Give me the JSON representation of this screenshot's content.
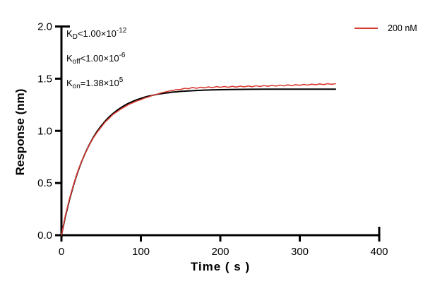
{
  "figure": {
    "background": "#ffffff"
  },
  "colors": {
    "series_red": "#d93b33",
    "fit_black": "#000000",
    "axis": "#000000",
    "text": "#000000"
  },
  "annotation": {
    "lines": [
      {
        "base": "K",
        "sub": "D",
        "mid": "<1.00×10",
        "sup": "-12"
      },
      {
        "base": "K",
        "sub": "off",
        "mid": "<1.00×10",
        "sup": "-6"
      },
      {
        "base": "K",
        "sub": "on",
        "mid": "=1.38×10",
        "sup": "5"
      }
    ]
  },
  "legend": {
    "items": [
      {
        "label": "200 nM",
        "color": "#d93b33"
      }
    ]
  },
  "chart_data": {
    "type": "line",
    "title": "",
    "xlabel": "Time ( s )",
    "ylabel": "Response (nm)",
    "xlim": [
      0,
      400
    ],
    "ylim": [
      0,
      2
    ],
    "x_ticks": [
      0,
      100,
      200,
      300,
      400
    ],
    "y_ticks": [
      "0.0",
      "0.5",
      "1.0",
      "1.5",
      "2.0"
    ],
    "grid": false,
    "legend_position": "top-right",
    "series": [
      {
        "name": "Fit",
        "role": "fit",
        "color": "#000000",
        "width": 2,
        "points": [
          [
            0,
            0.0
          ],
          [
            5,
            0.18
          ],
          [
            10,
            0.338
          ],
          [
            15,
            0.474
          ],
          [
            20,
            0.594
          ],
          [
            25,
            0.698
          ],
          [
            30,
            0.788
          ],
          [
            35,
            0.867
          ],
          [
            40,
            0.936
          ],
          [
            45,
            0.996
          ],
          [
            50,
            1.048
          ],
          [
            55,
            1.093
          ],
          [
            60,
            1.133
          ],
          [
            65,
            1.167
          ],
          [
            70,
            1.197
          ],
          [
            75,
            1.223
          ],
          [
            80,
            1.246
          ],
          [
            85,
            1.266
          ],
          [
            90,
            1.283
          ],
          [
            95,
            1.298
          ],
          [
            100,
            1.311
          ],
          [
            105,
            1.323
          ],
          [
            110,
            1.333
          ],
          [
            115,
            1.341
          ],
          [
            120,
            1.349
          ],
          [
            125,
            1.356
          ],
          [
            130,
            1.361
          ],
          [
            135,
            1.366
          ],
          [
            140,
            1.371
          ],
          [
            145,
            1.374
          ],
          [
            150,
            1.378
          ],
          [
            160,
            1.383
          ],
          [
            170,
            1.387
          ],
          [
            180,
            1.39
          ],
          [
            190,
            1.393
          ],
          [
            200,
            1.394
          ],
          [
            220,
            1.397
          ],
          [
            240,
            1.398
          ],
          [
            260,
            1.399
          ],
          [
            280,
            1.399
          ],
          [
            300,
            1.4
          ],
          [
            320,
            1.4
          ],
          [
            345,
            1.4
          ]
        ]
      },
      {
        "name": "200 nM",
        "role": "data",
        "color": "#d93b33",
        "width": 1.6,
        "points": [
          [
            0,
            0.0
          ],
          [
            5,
            0.188
          ],
          [
            10,
            0.346
          ],
          [
            15,
            0.479
          ],
          [
            20,
            0.601
          ],
          [
            25,
            0.7
          ],
          [
            30,
            0.787
          ],
          [
            35,
            0.864
          ],
          [
            40,
            0.93
          ],
          [
            45,
            0.987
          ],
          [
            50,
            1.036
          ],
          [
            55,
            1.084
          ],
          [
            60,
            1.12
          ],
          [
            65,
            1.158
          ],
          [
            70,
            1.184
          ],
          [
            75,
            1.21
          ],
          [
            80,
            1.232
          ],
          [
            85,
            1.254
          ],
          [
            90,
            1.27
          ],
          [
            95,
            1.287
          ],
          [
            100,
            1.299
          ],
          [
            105,
            1.315
          ],
          [
            110,
            1.326
          ],
          [
            115,
            1.341
          ],
          [
            120,
            1.35
          ],
          [
            125,
            1.363
          ],
          [
            130,
            1.371
          ],
          [
            135,
            1.381
          ],
          [
            140,
            1.387
          ],
          [
            145,
            1.395
          ],
          [
            150,
            1.396
          ],
          [
            155,
            1.408
          ],
          [
            160,
            1.404
          ],
          [
            165,
            1.416
          ],
          [
            170,
            1.408
          ],
          [
            175,
            1.418
          ],
          [
            180,
            1.412
          ],
          [
            185,
            1.421
          ],
          [
            190,
            1.414
          ],
          [
            195,
            1.424
          ],
          [
            200,
            1.417
          ],
          [
            205,
            1.425
          ],
          [
            210,
            1.418
          ],
          [
            215,
            1.427
          ],
          [
            220,
            1.419
          ],
          [
            225,
            1.428
          ],
          [
            230,
            1.421
          ],
          [
            235,
            1.43
          ],
          [
            240,
            1.423
          ],
          [
            245,
            1.432
          ],
          [
            250,
            1.425
          ],
          [
            255,
            1.434
          ],
          [
            260,
            1.427
          ],
          [
            265,
            1.436
          ],
          [
            270,
            1.429
          ],
          [
            275,
            1.438
          ],
          [
            280,
            1.431
          ],
          [
            285,
            1.44
          ],
          [
            290,
            1.433
          ],
          [
            295,
            1.442
          ],
          [
            300,
            1.436
          ],
          [
            305,
            1.445
          ],
          [
            310,
            1.438
          ],
          [
            315,
            1.447
          ],
          [
            320,
            1.441
          ],
          [
            325,
            1.45
          ],
          [
            330,
            1.443
          ],
          [
            335,
            1.452
          ],
          [
            340,
            1.446
          ],
          [
            345,
            1.452
          ]
        ]
      }
    ]
  }
}
